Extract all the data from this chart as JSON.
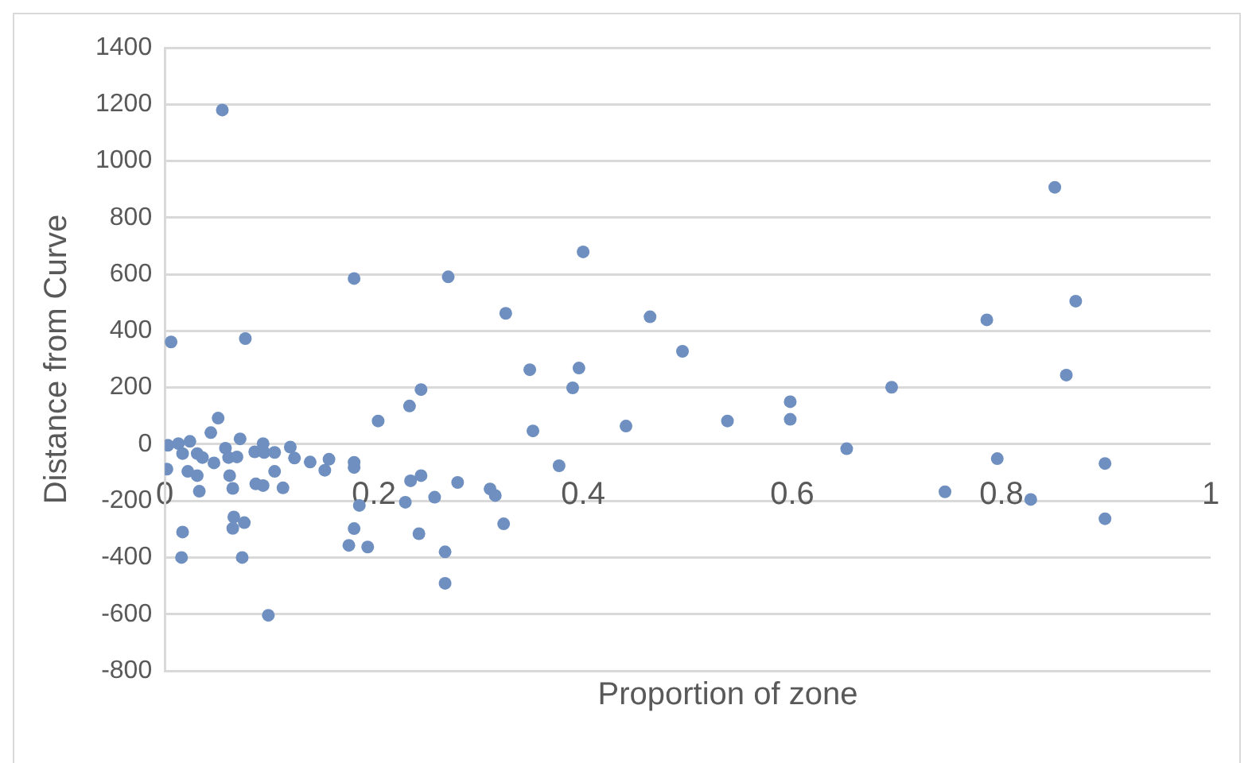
{
  "chart_data": {
    "type": "scatter",
    "xlabel": "Proportion of zone",
    "ylabel": "Distance from Curve",
    "xlim": [
      0,
      1
    ],
    "xticks": [
      0,
      0.2,
      0.4,
      0.6,
      0.8,
      1
    ],
    "ylim": [
      -800,
      1400
    ],
    "yticks": [
      -800,
      -600,
      -400,
      -200,
      0,
      200,
      400,
      600,
      800,
      1000,
      1200,
      1400
    ],
    "grid": "y",
    "marker": "circle",
    "series": [
      {
        "color": "#6e8fbf",
        "x": [
          0.181,
          0.271,
          0.4,
          0.326,
          0.464,
          0.495,
          0.349,
          0.396,
          0.39,
          0.245,
          0.234,
          0.204,
          0.352,
          0.441,
          0.377,
          0.181,
          0.181,
          0.245,
          0.235,
          0.28,
          0.258,
          0.311,
          0.316,
          0.23,
          0.186,
          0.181,
          0.324,
          0.243,
          0.194,
          0.176,
          0.268,
          0.268,
          0.538,
          0.598,
          0.598,
          0.652,
          0.695,
          0.786,
          0.851,
          0.871,
          0.862,
          0.796,
          0.899,
          0.746,
          0.828,
          0.899,
          0.055,
          0.006,
          0.077,
          0.051,
          0.003,
          0.013,
          0.024,
          0.017,
          0.031,
          0.036,
          0.002,
          0.022,
          0.031,
          0.033,
          0.044,
          0.047,
          0.058,
          0.061,
          0.069,
          0.072,
          0.062,
          0.065,
          0.086,
          0.094,
          0.095,
          0.105,
          0.105,
          0.087,
          0.094,
          0.113,
          0.12,
          0.124,
          0.139,
          0.157,
          0.153,
          0.066,
          0.065,
          0.076,
          0.017,
          0.016,
          0.074,
          0.099
        ],
        "values": [
          585,
          591,
          679,
          462,
          450,
          328,
          263,
          269,
          199,
          193,
          135,
          82,
          47,
          64,
          -76,
          -64,
          -82,
          -111,
          -129,
          -135,
          -187,
          -158,
          -181,
          -205,
          -216,
          -298,
          -281,
          -316,
          -363,
          -357,
          -380,
          -491,
          82,
          150,
          88,
          -16,
          201,
          439,
          907,
          505,
          244,
          -51,
          -68,
          -168,
          -195,
          -263,
          1180,
          361,
          373,
          92,
          -4,
          2,
          10,
          -33,
          -33,
          -47,
          -88,
          -96,
          -111,
          -166,
          41,
          -66,
          -14,
          -47,
          -45,
          19,
          -111,
          -156,
          -27,
          2,
          -29,
          -29,
          -96,
          -140,
          -146,
          -154,
          -10,
          -49,
          -63,
          -53,
          -92,
          -257,
          -297,
          -277,
          -310,
          -400,
          -400,
          -604
        ]
      }
    ]
  }
}
